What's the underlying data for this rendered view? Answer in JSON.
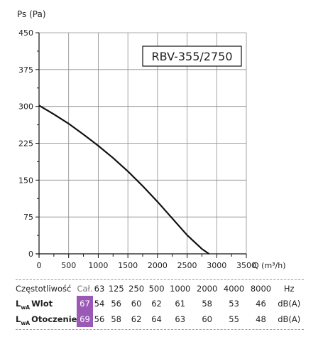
{
  "chart_data": {
    "type": "line",
    "title": "RBV-355/2750",
    "xlabel": "Q (m³/h)",
    "ylabel": "Ps (Pa)",
    "xlim": [
      0,
      3500
    ],
    "ylim": [
      0,
      450
    ],
    "x_ticks": [
      "0",
      "500",
      "1000",
      "1500",
      "2000",
      "2500",
      "3000",
      "3500"
    ],
    "y_ticks": [
      "0",
      "75",
      "150",
      "225",
      "300",
      "375",
      "450"
    ],
    "grid": true,
    "series": [
      {
        "x": [
          0,
          250,
          500,
          750,
          1000,
          1250,
          1500,
          1750,
          2000,
          2250,
          2500,
          2750,
          2870
        ],
        "y": [
          302,
          284,
          265,
          243,
          220,
          195,
          168,
          138,
          106,
          72,
          38,
          10,
          0
        ],
        "color": "#111111"
      }
    ]
  },
  "sound_table": {
    "header": {
      "label": "Częstotliwość",
      "total": "Cał.",
      "bands": [
        "63",
        "125",
        "250",
        "500",
        "1000",
        "2000",
        "4000",
        "8000"
      ],
      "unit": "Hz"
    },
    "rows": [
      {
        "main": "L",
        "sub": "wA",
        "name": "Wlot",
        "total": "67",
        "values": [
          "54",
          "56",
          "60",
          "62",
          "61",
          "58",
          "53",
          "46"
        ],
        "unit": "dB(A)"
      },
      {
        "main": "L",
        "sub": "wA",
        "name": "Otoczenie",
        "total": "69",
        "values": [
          "56",
          "58",
          "62",
          "64",
          "63",
          "60",
          "55",
          "48"
        ],
        "unit": "dB(A)"
      }
    ],
    "highlight_color": "#9b59b6"
  }
}
